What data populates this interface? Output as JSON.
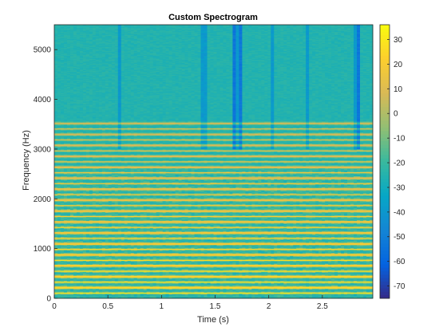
{
  "chart_data": {
    "type": "heatmap",
    "title": "Custom Spectrogram",
    "xlabel": "Time (s)",
    "ylabel": "Frequency (Hz)",
    "xlim": [
      0,
      2.97
    ],
    "ylim": [
      0,
      5500
    ],
    "x_ticks": [
      0,
      0.5,
      1,
      1.5,
      2,
      2.5
    ],
    "x_tick_labels": [
      "0",
      "0.5",
      "1",
      "1.5",
      "2",
      "2.5"
    ],
    "y_ticks": [
      0,
      1000,
      2000,
      3000,
      4000,
      5000
    ],
    "y_tick_labels": [
      "0",
      "1000",
      "2000",
      "3000",
      "4000",
      "5000"
    ],
    "colorbar": {
      "colormap": "parula",
      "clim": [
        -75,
        36
      ],
      "ticks": [
        30,
        20,
        10,
        0,
        -10,
        -20,
        -30,
        -40,
        -50,
        -60,
        -70
      ],
      "tick_labels": [
        "30",
        "20",
        "10",
        "0",
        "-10",
        "-20",
        "-30",
        "-40",
        "-50",
        "-60",
        "-70"
      ]
    },
    "harmonic_bands_hz": [
      110,
      220,
      330,
      440,
      550,
      660,
      770,
      880,
      990,
      1100,
      1210,
      1320,
      1430,
      1540,
      1650,
      1760,
      1870,
      1980,
      2090,
      2200,
      2310,
      2420,
      2530,
      2640,
      2750,
      2860,
      2970,
      3080,
      3190,
      3300,
      3410,
      3520
    ],
    "background_level_db": -25,
    "grid": false
  },
  "colors": {
    "parula_stops": [
      "#352a87",
      "#0363e1",
      "#1485d4",
      "#06a7c6",
      "#38b99e",
      "#92bf73",
      "#d9ba56",
      "#fcce2e",
      "#f9fb0e"
    ]
  }
}
